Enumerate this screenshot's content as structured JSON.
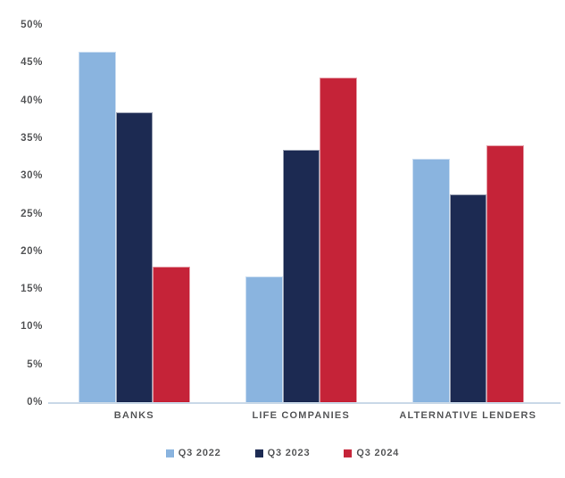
{
  "chart_data": {
    "type": "bar",
    "title": "",
    "xlabel": "",
    "ylabel": "",
    "categories": [
      "BANKS",
      "LIFE COMPANIES",
      "ALTERNATIVE LENDERS"
    ],
    "series": [
      {
        "name": "Q3 2022",
        "color": "#8AB4DF",
        "values": [
          46.4,
          16.7,
          32.3
        ]
      },
      {
        "name": "Q3 2023",
        "color": "#1C2A52",
        "values": [
          38.4,
          33.5,
          27.5
        ]
      },
      {
        "name": "Q3 2024",
        "color": "#C52338",
        "values": [
          18.0,
          43.0,
          34.0
        ]
      }
    ],
    "ylim": [
      0,
      50
    ],
    "ytick_step": 5,
    "ytick_suffix": "%",
    "grid": false,
    "legend_position": "bottom",
    "axis_line_color": "#CBDAE8",
    "label_text_color": "#57585A",
    "background_color": "#FFFFFF"
  }
}
